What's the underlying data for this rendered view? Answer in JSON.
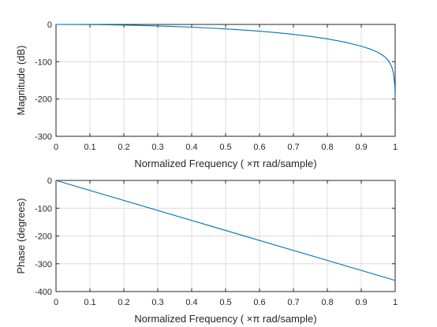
{
  "chart_data": [
    {
      "type": "line",
      "xlabel": "Normalized Frequency  ( ×π rad/sample)",
      "ylabel": "Magnitude (dB)",
      "xlim": [
        0,
        1
      ],
      "ylim": [
        -300,
        0
      ],
      "xticks": [
        0,
        0.1,
        0.2,
        0.3,
        0.4,
        0.5,
        0.6,
        0.7,
        0.8,
        0.9,
        1
      ],
      "xtick_labels": [
        "0",
        "0.1",
        "0.2",
        "0.3",
        "0.4",
        "0.5",
        "0.6",
        "0.7",
        "0.8",
        "0.9",
        "1"
      ],
      "yticks": [
        -300,
        -200,
        -100,
        0
      ],
      "ytick_labels": [
        "-300",
        "-200",
        "-100",
        "0"
      ],
      "grid": true,
      "series": [
        {
          "color": "#0072bd",
          "x": [
            0,
            0.05,
            0.1,
            0.15,
            0.2,
            0.25,
            0.3,
            0.35,
            0.4,
            0.45,
            0.5,
            0.55,
            0.6,
            0.65,
            0.7,
            0.75,
            0.8,
            0.85,
            0.9,
            0.93,
            0.95,
            0.97,
            0.98,
            0.99,
            0.995,
            0.999,
            1
          ],
          "y": [
            0,
            -0.1,
            -0.4,
            -0.9,
            -1.8,
            -2.8,
            -4.1,
            -5.6,
            -7.4,
            -9.5,
            -12,
            -14.9,
            -18.2,
            -22,
            -26.6,
            -32.1,
            -38.7,
            -47.1,
            -58.3,
            -67.2,
            -75.3,
            -87.3,
            -97.1,
            -114,
            -131,
            -165,
            -200
          ]
        }
      ]
    },
    {
      "type": "line",
      "xlabel": "Normalized Frequency  ( ×π rad/sample)",
      "ylabel": "Phase (degrees)",
      "xlim": [
        0,
        1
      ],
      "ylim": [
        -400,
        0
      ],
      "xticks": [
        0,
        0.1,
        0.2,
        0.3,
        0.4,
        0.5,
        0.6,
        0.7,
        0.8,
        0.9,
        1
      ],
      "xtick_labels": [
        "0",
        "0.1",
        "0.2",
        "0.3",
        "0.4",
        "0.5",
        "0.6",
        "0.7",
        "0.8",
        "0.9",
        "1"
      ],
      "yticks": [
        -400,
        -300,
        -200,
        -100,
        0
      ],
      "ytick_labels": [
        "-400",
        "-300",
        "-200",
        "-100",
        "0"
      ],
      "grid": true,
      "series": [
        {
          "color": "#0072bd",
          "x": [
            0,
            1
          ],
          "y": [
            0,
            -360
          ]
        }
      ]
    }
  ]
}
